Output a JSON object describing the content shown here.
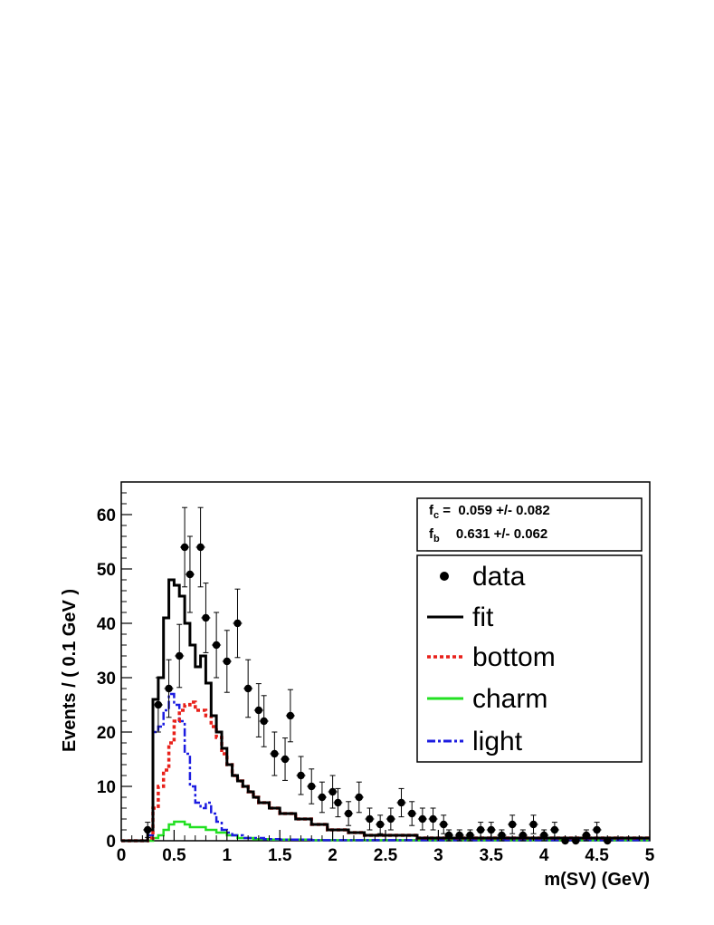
{
  "chart_data": {
    "type": "histogram",
    "xlabel": "m(SV) (GeV)",
    "ylabel": "Events / ( 0.1 GeV )",
    "xlim": [
      0,
      5
    ],
    "ylim": [
      0,
      66
    ],
    "x_ticks": [
      0,
      0.5,
      1,
      1.5,
      2,
      2.5,
      3,
      3.5,
      4,
      4.5,
      5
    ],
    "x_tick_labels": [
      "0",
      "0.5",
      "1",
      "1.5",
      "2",
      "2.5",
      "3",
      "3.5",
      "4",
      "4.5",
      "5"
    ],
    "y_ticks": [
      0,
      10,
      20,
      30,
      40,
      50,
      60
    ],
    "y_tick_labels": [
      "0",
      "10",
      "20",
      "30",
      "40",
      "50",
      "60"
    ],
    "grid": false,
    "legend_placement": "right",
    "fit_results": [
      {
        "param": "f",
        "sub": "c",
        "text": " =  0.059 +/- 0.082"
      },
      {
        "param": "f",
        "sub": "b",
        "text": "  0.631 +/- 0.062"
      }
    ],
    "legend": [
      {
        "label": "data",
        "style": "marker"
      },
      {
        "label": "fit",
        "style": "solid",
        "color": "#000000"
      },
      {
        "label": "bottom",
        "style": "dotted",
        "color": "#e8201a"
      },
      {
        "label": "charm",
        "style": "solid",
        "color": "#22e022"
      },
      {
        "label": "light",
        "style": "dashdot",
        "color": "#1c1ce0"
      }
    ],
    "bin_width": 0.05,
    "bin_edges_start": 0,
    "series": [
      {
        "name": "fit",
        "color": "#000000",
        "values": [
          0,
          0,
          0,
          0,
          0,
          2,
          26,
          30,
          41,
          48,
          47,
          45,
          40,
          36,
          32,
          34,
          29,
          23,
          20,
          17,
          14,
          12,
          11,
          10,
          9,
          8,
          7,
          7,
          6,
          6,
          5,
          5,
          5,
          4,
          4,
          4,
          3,
          3,
          3,
          2,
          2,
          2,
          2,
          1.5,
          1.5,
          1.5,
          1,
          1,
          1,
          1,
          1,
          1,
          1,
          1,
          1,
          1,
          0.5,
          0.5,
          0.5,
          0.5,
          0.5,
          0.5,
          0.5,
          0.5,
          0.5,
          0.5,
          0.5,
          0.5,
          0.5,
          0.5,
          0.5,
          0.5,
          0.5,
          0.5,
          0.5,
          0.5,
          0.5,
          0.5,
          0.5,
          0.5,
          0.5,
          0.5,
          0.5,
          0.5,
          0.5,
          0.5,
          0.5,
          0.5,
          0.5,
          0.5,
          0.5,
          0.5,
          0.5,
          0.5,
          0.5,
          0.5,
          0.5,
          0.5,
          0.5,
          0.5
        ]
      },
      {
        "name": "bottom",
        "color": "#e8201a",
        "values": [
          0,
          0,
          0,
          0,
          0,
          0.5,
          6,
          10,
          13,
          18,
          22,
          24,
          25,
          25.5,
          24,
          24,
          23,
          21,
          19,
          16,
          14,
          12,
          11,
          10,
          9,
          8,
          7,
          7,
          6,
          6,
          5,
          5,
          5,
          4,
          4,
          4,
          3,
          3,
          3,
          2,
          2,
          2,
          2,
          1.5,
          1.5,
          1.5,
          1,
          1,
          1,
          1,
          1,
          1,
          1,
          1,
          1,
          1,
          0.5,
          0.5,
          0.5,
          0.5,
          0.5,
          0.5,
          0.5,
          0.5,
          0.5,
          0.5,
          0.5,
          0.5,
          0.5,
          0.5,
          0.5,
          0.5,
          0.5,
          0.5,
          0.5,
          0.5,
          0.5,
          0.5,
          0.5,
          0.5,
          0.5,
          0.5,
          0.5,
          0.5,
          0.5,
          0.5,
          0.5,
          0.5,
          0.5,
          0.5,
          0.5,
          0.5,
          0.5,
          0.5,
          0.5,
          0.5,
          0.5,
          0.5,
          0.5,
          0.5
        ]
      },
      {
        "name": "charm",
        "color": "#22e022",
        "values": [
          0,
          0,
          0,
          0,
          0,
          0,
          0.5,
          1,
          2,
          3,
          3.5,
          3.5,
          3,
          2.5,
          2.5,
          2.5,
          2,
          2,
          1.5,
          1.5,
          1,
          1,
          0.5,
          0.5,
          0.5,
          0.3,
          0.3,
          0.3,
          0.2,
          0.2,
          0.2,
          0.2,
          0.2,
          0.2,
          0.2,
          0.2,
          0.1,
          0.1,
          0.1,
          0.1,
          0.1,
          0.1,
          0.1,
          0.1,
          0.1,
          0.1,
          0.1,
          0.1,
          0.1,
          0.1,
          0.1,
          0.1,
          0.1,
          0.1,
          0.1,
          0.1,
          0.1,
          0.1,
          0.1,
          0.1,
          0.1,
          0.1,
          0.1,
          0.1,
          0.1,
          0.1,
          0.1,
          0.1,
          0.1,
          0.1,
          0.1,
          0.1,
          0.1,
          0.1,
          0.1,
          0.1,
          0.1,
          0.1,
          0.1,
          0.1,
          0.1,
          0.1,
          0.1,
          0.1,
          0.1,
          0.1,
          0.1,
          0.1,
          0.1,
          0.1,
          0.1,
          0.1,
          0.1,
          0.1,
          0.1,
          0.1,
          0.1,
          0.1,
          0.1,
          0.1
        ]
      },
      {
        "name": "light",
        "color": "#1c1ce0",
        "values": [
          0,
          0,
          0,
          0,
          0,
          1,
          20,
          21,
          24,
          27,
          25,
          22,
          16,
          10,
          7,
          6,
          7,
          5,
          3.5,
          2,
          1.5,
          1,
          1,
          0.5,
          0.5,
          0.5,
          0.5,
          0.3,
          0.3,
          0.3,
          0.2,
          0.2,
          0.2,
          0.2,
          0.2,
          0.2,
          0.1,
          0.1,
          0.1,
          0.1,
          0.1,
          0.1,
          0.1,
          0.1,
          0.1,
          0.1,
          0.1,
          0.1,
          0.1,
          0.1,
          0.1,
          0.1,
          0.1,
          0.1,
          0.1,
          0.1,
          0.1,
          0.1,
          0.1,
          0.1,
          0.1,
          0.1,
          0.1,
          0.1,
          0.1,
          0.1,
          0.1,
          0.1,
          0.1,
          0.1,
          0.1,
          0.1,
          0.1,
          0.1,
          0.1,
          0.1,
          0.1,
          0.1,
          0.1,
          0.1,
          0.1,
          0.1,
          0.1,
          0.1,
          0.1,
          0.1,
          0.1,
          0.1,
          0.1,
          0.1,
          0.1,
          0.1,
          0.1,
          0.1,
          0.1,
          0.1,
          0.1,
          0.1,
          0.1,
          0.1
        ]
      }
    ],
    "data_points": {
      "name": "data",
      "x": [
        0.25,
        0.35,
        0.45,
        0.55,
        0.6,
        0.65,
        0.75,
        0.8,
        0.9,
        1.0,
        1.1,
        1.2,
        1.3,
        1.35,
        1.45,
        1.55,
        1.6,
        1.7,
        1.8,
        1.9,
        2.0,
        2.05,
        2.15,
        2.25,
        2.35,
        2.45,
        2.55,
        2.65,
        2.75,
        2.85,
        2.95,
        3.05,
        3.1,
        3.2,
        3.3,
        3.4,
        3.5,
        3.6,
        3.7,
        3.8,
        3.9,
        4.0,
        4.1,
        4.2,
        4.3,
        4.4,
        4.5,
        4.6
      ],
      "y": [
        2,
        25,
        28,
        34,
        54,
        49,
        54,
        41,
        36,
        33,
        40,
        28,
        24,
        22,
        16,
        15,
        23,
        12,
        10,
        8,
        9,
        7,
        5,
        8,
        4,
        3,
        4,
        7,
        5,
        4,
        4,
        3,
        1,
        1,
        1,
        2,
        2,
        1,
        3,
        1,
        3,
        1,
        2,
        0,
        0,
        1,
        2,
        0
      ],
      "err": [
        1.4,
        5,
        5.3,
        5.8,
        7.3,
        7,
        7.3,
        6.4,
        6,
        5.7,
        6.3,
        5.3,
        4.9,
        4.7,
        4,
        3.9,
        4.8,
        3.5,
        3.2,
        2.8,
        3,
        2.6,
        2.2,
        2.8,
        2,
        1.7,
        2,
        2.6,
        2.2,
        2,
        2,
        1.7,
        1,
        1,
        1,
        1.4,
        1.4,
        1,
        1.7,
        1,
        1.7,
        1,
        1.4,
        0,
        0,
        1,
        1.4,
        0
      ]
    }
  }
}
